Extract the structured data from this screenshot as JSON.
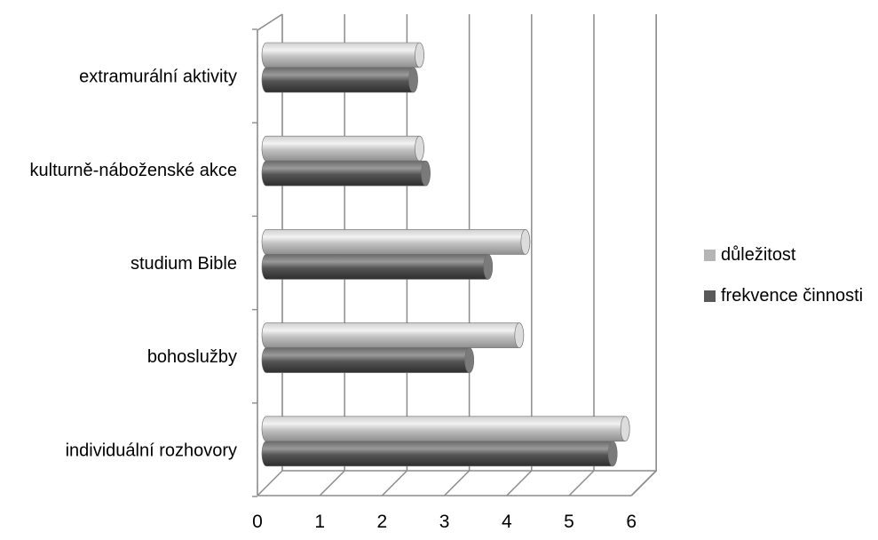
{
  "chart_data": {
    "type": "bar",
    "orientation": "horizontal",
    "style": "3d-cylinder",
    "categories": [
      "extramurální aktivity",
      "kulturně-náboženské akce",
      "studium Bible",
      "bohoslužby",
      "individuální rozhovory"
    ],
    "series": [
      {
        "name": "důležitost",
        "values": [
          2.6,
          2.6,
          4.3,
          4.2,
          5.9
        ],
        "color": "#b5b5b5"
      },
      {
        "name": "frekvence činnosti",
        "values": [
          2.5,
          2.7,
          3.7,
          3.4,
          5.7
        ],
        "color": "#595959"
      }
    ],
    "xticks": [
      "0",
      "1",
      "2",
      "3",
      "4",
      "5",
      "6"
    ],
    "xlim": [
      0,
      6
    ],
    "grid": true,
    "legend_position": "right"
  }
}
